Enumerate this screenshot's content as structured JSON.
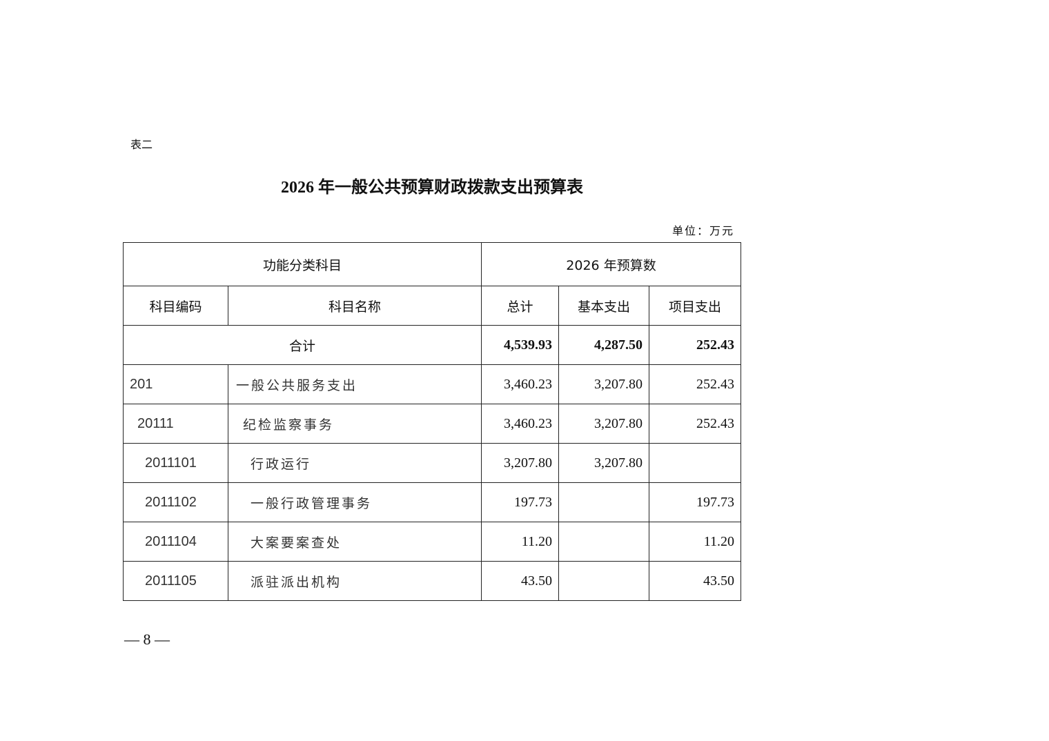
{
  "label": "表二",
  "title": "2026 年一般公共预算财政拨款支出预算表",
  "unit": "单位：万元",
  "header": {
    "group_left": "功能分类科目",
    "group_right": "2026 年预算数",
    "code": "科目编码",
    "name": "科目名称",
    "total": "总计",
    "basic": "基本支出",
    "project": "项目支出"
  },
  "total_row": {
    "label": "合计",
    "total": "4,539.93",
    "basic": "4,287.50",
    "project": "252.43"
  },
  "rows": [
    {
      "code": "201",
      "name": "一般公共服务支出",
      "total": "3,460.23",
      "basic": "3,207.80",
      "project": "252.43"
    },
    {
      "code": "20111",
      "name": "纪检监察事务",
      "total": "3,460.23",
      "basic": "3,207.80",
      "project": "252.43"
    },
    {
      "code": "2011101",
      "name": "行政运行",
      "total": "3,207.80",
      "basic": "3,207.80",
      "project": ""
    },
    {
      "code": "2011102",
      "name": "一般行政管理事务",
      "total": "197.73",
      "basic": "",
      "project": "197.73"
    },
    {
      "code": "2011104",
      "name": "大案要案查处",
      "total": "11.20",
      "basic": "",
      "project": "11.20"
    },
    {
      "code": "2011105",
      "name": "派驻派出机构",
      "total": "43.50",
      "basic": "",
      "project": "43.50"
    }
  ],
  "page_number": "— 8 —"
}
